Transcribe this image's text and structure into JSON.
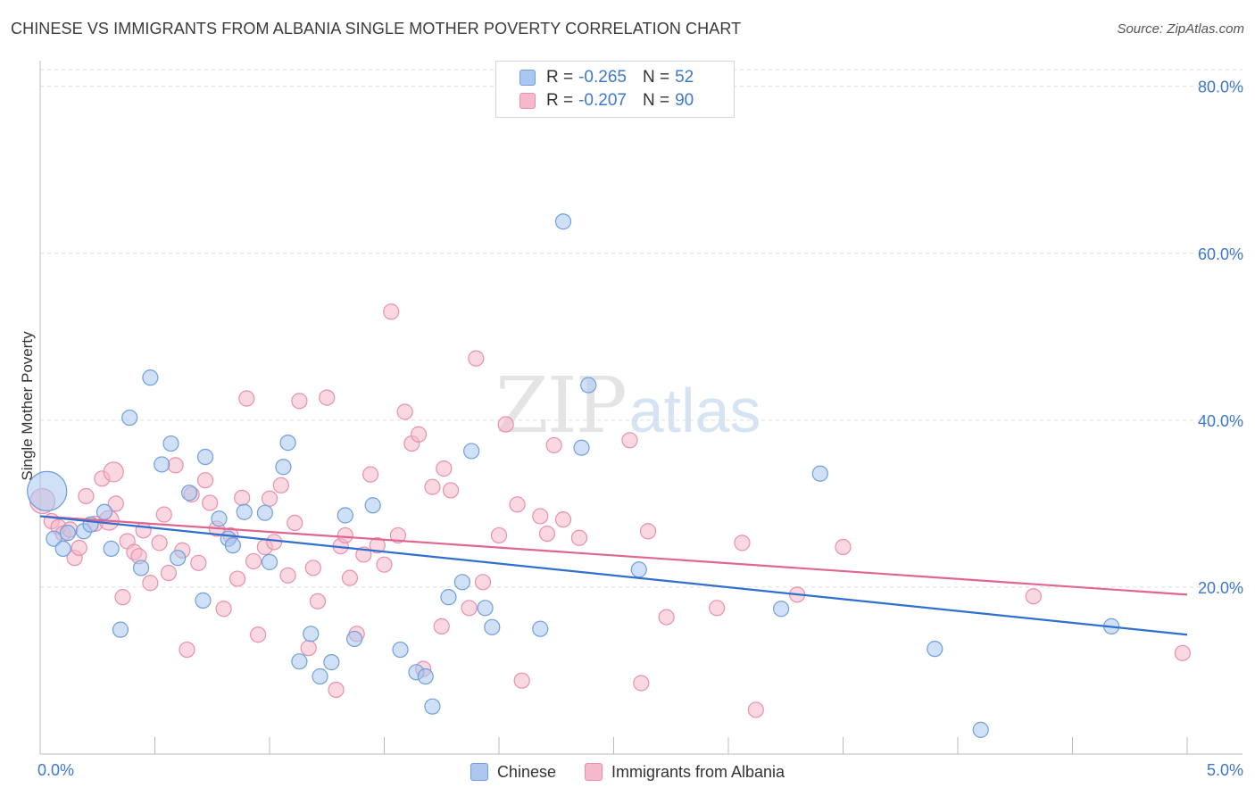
{
  "header": {
    "title": "CHINESE VS IMMIGRANTS FROM ALBANIA SINGLE MOTHER POVERTY CORRELATION CHART",
    "source": "Source: ZipAtlas.com"
  },
  "watermark": {
    "zip": "ZIP",
    "atlas": "atlas"
  },
  "legend_top": {
    "rows": [
      {
        "r_label": "R =",
        "r_value": "-0.265",
        "n_label": "N =",
        "n_value": "52",
        "color": "#a9c7ef"
      },
      {
        "r_label": "R =",
        "r_value": "-0.207",
        "n_label": "N =",
        "n_value": "90",
        "color": "#f6b8cb"
      }
    ]
  },
  "legend_bottom": {
    "items": [
      {
        "label": "Chinese",
        "color": "#a9c7ef"
      },
      {
        "label": "Immigrants from Albania",
        "color": "#f6b8cb"
      }
    ]
  },
  "chart_data": {
    "type": "scatter",
    "ylabel": "Single Mother Poverty",
    "xlim": [
      0,
      5
    ],
    "ylim": [
      0,
      82
    ],
    "x_tick_labels": [
      {
        "value": 0,
        "label": "0.0%"
      },
      {
        "value": 5,
        "label": "5.0%"
      }
    ],
    "y_tick_labels": [
      {
        "value": 20,
        "label": "20.0%"
      },
      {
        "value": 40,
        "label": "40.0%"
      },
      {
        "value": 60,
        "label": "60.0%"
      },
      {
        "value": 80,
        "label": "80.0%"
      }
    ],
    "grid": true,
    "colors": {
      "chinese_fill": "#a9c7ef",
      "chinese_stroke": "#6f9fdc",
      "chinese_line": "#2f6fd0",
      "albania_fill": "#f6b8cb",
      "albania_stroke": "#ea8fab",
      "albania_line": "#e06690",
      "tick_label": "#3d78cc"
    },
    "series": [
      {
        "name": "Chinese",
        "trend": [
          [
            0,
            28.5
          ],
          [
            5,
            14.3
          ]
        ],
        "points": [
          [
            0.03,
            31.5
          ],
          [
            0.06,
            25.8
          ],
          [
            0.1,
            24.6
          ],
          [
            0.12,
            26.5
          ],
          [
            0.19,
            26.7
          ],
          [
            0.22,
            27.5
          ],
          [
            0.28,
            29.0
          ],
          [
            0.31,
            24.6
          ],
          [
            0.35,
            14.9
          ],
          [
            0.39,
            40.3
          ],
          [
            0.44,
            22.3
          ],
          [
            0.48,
            45.1
          ],
          [
            0.53,
            34.7
          ],
          [
            0.57,
            37.2
          ],
          [
            0.6,
            23.5
          ],
          [
            0.65,
            31.3
          ],
          [
            0.71,
            18.4
          ],
          [
            0.72,
            35.6
          ],
          [
            0.78,
            28.2
          ],
          [
            0.82,
            25.8
          ],
          [
            0.84,
            25.0
          ],
          [
            0.89,
            29.0
          ],
          [
            0.98,
            28.9
          ],
          [
            1.0,
            23.0
          ],
          [
            1.06,
            34.4
          ],
          [
            1.08,
            37.3
          ],
          [
            1.13,
            11.1
          ],
          [
            1.18,
            14.4
          ],
          [
            1.22,
            9.3
          ],
          [
            1.27,
            11.0
          ],
          [
            1.33,
            28.6
          ],
          [
            1.37,
            13.8
          ],
          [
            1.45,
            29.8
          ],
          [
            1.57,
            12.5
          ],
          [
            1.64,
            9.8
          ],
          [
            1.68,
            9.3
          ],
          [
            1.71,
            5.7
          ],
          [
            1.78,
            18.8
          ],
          [
            1.84,
            20.6
          ],
          [
            1.88,
            36.3
          ],
          [
            1.94,
            17.5
          ],
          [
            1.97,
            15.2
          ],
          [
            2.18,
            15.0
          ],
          [
            2.28,
            63.8
          ],
          [
            2.36,
            36.7
          ],
          [
            2.39,
            44.2
          ],
          [
            2.61,
            22.1
          ],
          [
            3.23,
            17.4
          ],
          [
            3.4,
            33.6
          ],
          [
            3.9,
            12.6
          ],
          [
            4.1,
            2.9
          ],
          [
            4.67,
            15.3
          ]
        ]
      },
      {
        "name": "Immigrants from Albania",
        "trend": [
          [
            0,
            28.5
          ],
          [
            5,
            19.1
          ]
        ],
        "points": [
          [
            0.01,
            30.3
          ],
          [
            0.05,
            27.9
          ],
          [
            0.08,
            27.2
          ],
          [
            0.1,
            26.4
          ],
          [
            0.13,
            26.9
          ],
          [
            0.15,
            23.5
          ],
          [
            0.17,
            24.7
          ],
          [
            0.2,
            30.9
          ],
          [
            0.24,
            27.6
          ],
          [
            0.27,
            33.0
          ],
          [
            0.3,
            28.0
          ],
          [
            0.32,
            33.8
          ],
          [
            0.33,
            30.0
          ],
          [
            0.36,
            18.8
          ],
          [
            0.38,
            25.5
          ],
          [
            0.41,
            24.2
          ],
          [
            0.43,
            23.7
          ],
          [
            0.45,
            26.8
          ],
          [
            0.48,
            20.5
          ],
          [
            0.52,
            25.3
          ],
          [
            0.54,
            28.7
          ],
          [
            0.56,
            21.7
          ],
          [
            0.59,
            34.6
          ],
          [
            0.62,
            24.4
          ],
          [
            0.64,
            12.5
          ],
          [
            0.66,
            31.1
          ],
          [
            0.69,
            22.9
          ],
          [
            0.72,
            32.8
          ],
          [
            0.74,
            30.1
          ],
          [
            0.77,
            27.0
          ],
          [
            0.8,
            17.4
          ],
          [
            0.83,
            26.2
          ],
          [
            0.86,
            21.0
          ],
          [
            0.88,
            30.7
          ],
          [
            0.9,
            42.6
          ],
          [
            0.93,
            23.1
          ],
          [
            0.95,
            14.3
          ],
          [
            0.98,
            24.8
          ],
          [
            1.0,
            30.6
          ],
          [
            1.02,
            25.4
          ],
          [
            1.05,
            32.2
          ],
          [
            1.08,
            21.4
          ],
          [
            1.11,
            27.7
          ],
          [
            1.13,
            42.3
          ],
          [
            1.17,
            12.7
          ],
          [
            1.19,
            22.3
          ],
          [
            1.21,
            18.3
          ],
          [
            1.25,
            42.7
          ],
          [
            1.29,
            7.7
          ],
          [
            1.31,
            24.9
          ],
          [
            1.33,
            26.2
          ],
          [
            1.35,
            21.1
          ],
          [
            1.38,
            14.4
          ],
          [
            1.41,
            23.9
          ],
          [
            1.44,
            33.5
          ],
          [
            1.47,
            25.0
          ],
          [
            1.5,
            22.7
          ],
          [
            1.53,
            53.0
          ],
          [
            1.56,
            26.2
          ],
          [
            1.59,
            41.0
          ],
          [
            1.62,
            37.2
          ],
          [
            1.65,
            38.3
          ],
          [
            1.67,
            10.2
          ],
          [
            1.71,
            32.0
          ],
          [
            1.75,
            15.3
          ],
          [
            1.76,
            34.2
          ],
          [
            1.79,
            31.6
          ],
          [
            1.87,
            17.5
          ],
          [
            1.9,
            47.4
          ],
          [
            1.93,
            20.6
          ],
          [
            2.0,
            26.2
          ],
          [
            2.03,
            39.5
          ],
          [
            2.08,
            29.9
          ],
          [
            2.1,
            8.8
          ],
          [
            2.18,
            28.5
          ],
          [
            2.21,
            26.4
          ],
          [
            2.24,
            37.0
          ],
          [
            2.28,
            28.1
          ],
          [
            2.35,
            25.9
          ],
          [
            2.57,
            37.6
          ],
          [
            2.62,
            8.5
          ],
          [
            2.65,
            26.7
          ],
          [
            2.73,
            16.4
          ],
          [
            2.95,
            17.5
          ],
          [
            3.06,
            25.3
          ],
          [
            3.12,
            5.3
          ],
          [
            3.3,
            19.1
          ],
          [
            3.5,
            24.8
          ],
          [
            4.33,
            18.9
          ],
          [
            4.98,
            12.1
          ]
        ]
      }
    ]
  }
}
